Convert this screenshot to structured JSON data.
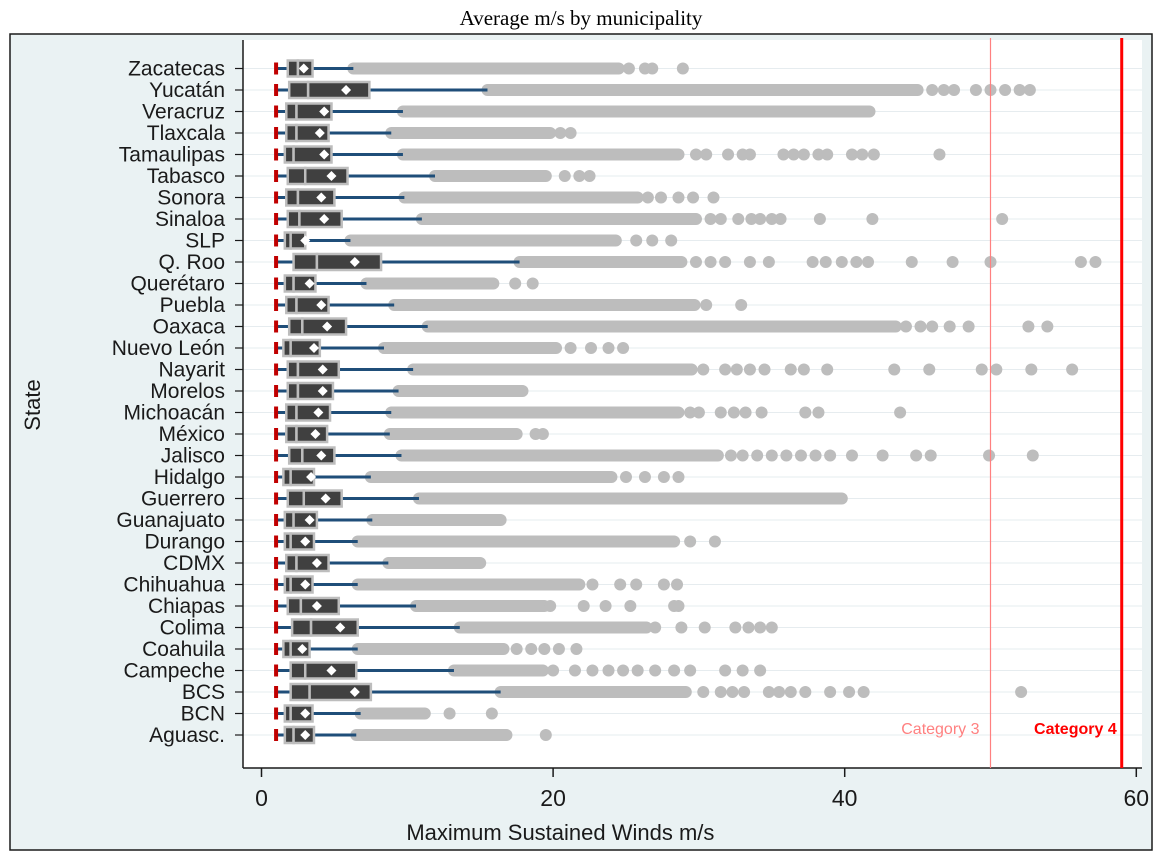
{
  "chart_data": {
    "type": "boxplot",
    "orientation": "horizontal",
    "title": "Average m/s by municipality",
    "xlabel": "Maximum Sustained Winds m/s",
    "ylabel": "State",
    "xlim": [
      -1,
      61
    ],
    "xticks": [
      0,
      20,
      40,
      60
    ],
    "grid": "horizontal",
    "legend": "none",
    "categories": [
      "Zacatecas",
      "Yucatán",
      "Veracruz",
      "Tlaxcala",
      "Tamaulipas",
      "Tabasco",
      "Sonora",
      "Sinaloa",
      "SLP",
      "Q. Roo",
      "Querétaro",
      "Puebla",
      "Oaxaca",
      "Nuevo León",
      "Nayarit",
      "Morelos",
      "Michoacán",
      "México",
      "Jalisco",
      "Hidalgo",
      "Guerrero",
      "Guanajuato",
      "Durango",
      "CDMX",
      "Chihuahua",
      "Chiapas",
      "Colima",
      "Coahuila",
      "Campeche",
      "BCS",
      "BCN",
      "Aguasc."
    ],
    "boxes": [
      {
        "min": 1.0,
        "q1": 1.8,
        "median": 2.5,
        "q3": 3.5,
        "mean": 2.9,
        "whisker_hi": 6.3,
        "outlier_range": [
          6.3,
          24.5
        ],
        "outliers": [
          25.2,
          26.3,
          26.8,
          28.9
        ]
      },
      {
        "min": 1.0,
        "q1": 1.9,
        "median": 3.2,
        "q3": 7.4,
        "mean": 5.8,
        "whisker_hi": 15.5,
        "outlier_range": [
          15.5,
          45.0
        ],
        "outliers": [
          46.0,
          46.8,
          47.5,
          49.0,
          50.0,
          51.0,
          52.0,
          52.7
        ]
      },
      {
        "min": 1.0,
        "q1": 1.7,
        "median": 2.4,
        "q3": 4.8,
        "mean": 4.3,
        "whisker_hi": 9.7,
        "outlier_range": [
          9.7,
          41.7
        ],
        "outliers": []
      },
      {
        "min": 1.0,
        "q1": 1.7,
        "median": 2.4,
        "q3": 4.6,
        "mean": 4.0,
        "whisker_hi": 8.9,
        "outlier_range": [
          8.9,
          19.8
        ],
        "outliers": [
          20.5,
          21.2
        ]
      },
      {
        "min": 1.0,
        "q1": 1.6,
        "median": 2.2,
        "q3": 4.8,
        "mean": 4.3,
        "whisker_hi": 9.7,
        "outlier_range": [
          9.7,
          28.6
        ],
        "outliers": [
          29.8,
          30.5,
          32.0,
          33.0,
          33.5,
          35.8,
          36.5,
          37.2,
          38.2,
          38.8,
          40.5,
          41.2,
          42.0,
          46.5
        ]
      },
      {
        "min": 1.0,
        "q1": 1.8,
        "median": 3.0,
        "q3": 5.9,
        "mean": 4.8,
        "whisker_hi": 11.9,
        "outlier_range": [
          11.9,
          19.5
        ],
        "outliers": [
          20.8,
          21.8,
          22.5
        ]
      },
      {
        "min": 1.0,
        "q1": 1.7,
        "median": 2.5,
        "q3": 5.0,
        "mean": 4.1,
        "whisker_hi": 9.8,
        "outlier_range": [
          9.8,
          25.8
        ],
        "outliers": [
          26.5,
          27.4,
          28.6,
          29.6,
          31.0
        ]
      },
      {
        "min": 1.0,
        "q1": 1.8,
        "median": 2.6,
        "q3": 5.5,
        "mean": 4.3,
        "whisker_hi": 11.0,
        "outlier_range": [
          11.0,
          29.8
        ],
        "outliers": [
          30.8,
          31.5,
          32.7,
          33.6,
          34.2,
          35.0,
          35.6,
          38.3,
          41.9,
          50.8
        ]
      },
      {
        "min": 1.0,
        "q1": 1.6,
        "median": 2.0,
        "q3": 3.0,
        "mean": 3.0,
        "whisker_hi": 6.1,
        "outlier_range": [
          6.1,
          24.3
        ],
        "outliers": [
          25.7,
          26.8,
          28.1
        ]
      },
      {
        "min": 1.0,
        "q1": 2.2,
        "median": 3.8,
        "q3": 8.2,
        "mean": 6.4,
        "whisker_hi": 17.7,
        "outlier_range": [
          17.7,
          28.8
        ],
        "outliers": [
          29.8,
          30.8,
          31.8,
          33.5,
          34.8,
          37.8,
          38.7,
          39.8,
          40.8,
          41.6,
          44.6,
          47.4,
          50.0,
          56.2,
          57.2
        ]
      },
      {
        "min": 1.0,
        "q1": 1.6,
        "median": 2.2,
        "q3": 3.7,
        "mean": 3.3,
        "whisker_hi": 7.2,
        "outlier_range": [
          7.2,
          15.9
        ],
        "outliers": [
          17.4,
          18.6
        ]
      },
      {
        "min": 1.0,
        "q1": 1.7,
        "median": 2.4,
        "q3": 4.6,
        "mean": 4.1,
        "whisker_hi": 9.1,
        "outlier_range": [
          9.1,
          29.7
        ],
        "outliers": [
          30.5,
          32.9
        ]
      },
      {
        "min": 1.0,
        "q1": 1.9,
        "median": 2.8,
        "q3": 5.8,
        "mean": 4.5,
        "whisker_hi": 11.4,
        "outlier_range": [
          11.4,
          43.5
        ],
        "outliers": [
          44.2,
          45.2,
          46.0,
          47.2,
          48.5,
          52.6,
          53.9
        ]
      },
      {
        "min": 1.0,
        "q1": 1.5,
        "median": 2.0,
        "q3": 4.0,
        "mean": 3.6,
        "whisker_hi": 8.4,
        "outlier_range": [
          8.4,
          20.2
        ],
        "outliers": [
          21.2,
          22.6,
          23.8,
          24.8
        ]
      },
      {
        "min": 1.0,
        "q1": 1.8,
        "median": 2.5,
        "q3": 5.3,
        "mean": 4.2,
        "whisker_hi": 10.4,
        "outlier_range": [
          10.4,
          29.5
        ],
        "outliers": [
          30.3,
          31.8,
          32.6,
          33.5,
          34.5,
          36.3,
          37.2,
          38.8,
          43.4,
          45.8,
          49.4,
          50.4,
          52.8,
          55.6
        ]
      },
      {
        "min": 1.0,
        "q1": 1.8,
        "median": 2.5,
        "q3": 4.9,
        "mean": 4.2,
        "whisker_hi": 9.4,
        "outlier_range": [
          9.4,
          17.9
        ],
        "outliers": []
      },
      {
        "min": 1.0,
        "q1": 1.7,
        "median": 2.4,
        "q3": 4.7,
        "mean": 3.9,
        "whisker_hi": 8.9,
        "outlier_range": [
          8.9,
          28.6
        ],
        "outliers": [
          29.4,
          30.0,
          31.5,
          32.4,
          33.2,
          34.3,
          37.3,
          38.2,
          43.8
        ]
      },
      {
        "min": 1.0,
        "q1": 1.7,
        "median": 2.4,
        "q3": 4.5,
        "mean": 3.7,
        "whisker_hi": 8.8,
        "outlier_range": [
          8.8,
          17.5
        ],
        "outliers": [
          18.8,
          19.3
        ]
      },
      {
        "min": 1.0,
        "q1": 1.9,
        "median": 2.8,
        "q3": 5.0,
        "mean": 4.1,
        "whisker_hi": 9.6,
        "outlier_range": [
          9.6,
          31.3
        ],
        "outliers": [
          32.2,
          33.0,
          34.0,
          35.0,
          36.0,
          37.0,
          38.0,
          39.0,
          40.5,
          42.6,
          44.9,
          45.9,
          49.9,
          52.9
        ]
      },
      {
        "min": 1.0,
        "q1": 1.5,
        "median": 2.0,
        "q3": 3.6,
        "mean": 3.4,
        "whisker_hi": 7.5,
        "outlier_range": [
          7.5,
          24.0
        ],
        "outliers": [
          25.0,
          26.3,
          27.6,
          28.6
        ]
      },
      {
        "min": 1.0,
        "q1": 1.8,
        "median": 2.9,
        "q3": 5.5,
        "mean": 4.4,
        "whisker_hi": 10.8,
        "outlier_range": [
          10.8,
          39.8
        ],
        "outliers": []
      },
      {
        "min": 1.0,
        "q1": 1.6,
        "median": 2.2,
        "q3": 3.8,
        "mean": 3.3,
        "whisker_hi": 7.6,
        "outlier_range": [
          7.6,
          16.4
        ],
        "outliers": []
      },
      {
        "min": 1.0,
        "q1": 1.6,
        "median": 2.0,
        "q3": 3.6,
        "mean": 3.0,
        "whisker_hi": 6.6,
        "outlier_range": [
          6.6,
          28.3
        ],
        "outliers": [
          29.4,
          31.1
        ]
      },
      {
        "min": 1.0,
        "q1": 1.7,
        "median": 2.4,
        "q3": 4.6,
        "mean": 3.8,
        "whisker_hi": 8.7,
        "outlier_range": [
          8.7,
          15.0
        ],
        "outliers": []
      },
      {
        "min": 1.0,
        "q1": 1.6,
        "median": 2.0,
        "q3": 3.5,
        "mean": 3.0,
        "whisker_hi": 6.6,
        "outlier_range": [
          6.6,
          21.8
        ],
        "outliers": [
          22.7,
          24.6,
          25.7,
          27.6,
          28.5
        ]
      },
      {
        "min": 1.0,
        "q1": 1.8,
        "median": 2.7,
        "q3": 5.3,
        "mean": 3.8,
        "whisker_hi": 10.6,
        "outlier_range": [
          10.6,
          19.4
        ],
        "outliers": [
          19.8,
          22.1,
          23.6,
          25.3,
          28.3,
          28.6
        ]
      },
      {
        "min": 1.0,
        "q1": 2.1,
        "median": 3.4,
        "q3": 6.6,
        "mean": 5.4,
        "whisker_hi": 13.6,
        "outlier_range": [
          13.6,
          26.4
        ],
        "outliers": [
          27.0,
          28.8,
          30.4,
          32.5,
          33.4,
          34.2,
          35.0
        ]
      },
      {
        "min": 1.0,
        "q1": 1.5,
        "median": 2.0,
        "q3": 3.3,
        "mean": 2.8,
        "whisker_hi": 6.6,
        "outlier_range": [
          6.6,
          16.6
        ],
        "outliers": [
          17.5,
          18.5,
          19.4,
          20.4,
          21.6
        ]
      },
      {
        "min": 1.0,
        "q1": 2.0,
        "median": 3.0,
        "q3": 6.5,
        "mean": 4.8,
        "whisker_hi": 13.2,
        "outlier_range": [
          13.2,
          19.3
        ],
        "outliers": [
          20.0,
          21.5,
          22.7,
          23.8,
          24.8,
          25.8,
          27.0,
          28.3,
          29.4,
          31.8,
          33.0,
          34.2
        ]
      },
      {
        "min": 1.0,
        "q1": 2.0,
        "median": 3.3,
        "q3": 7.5,
        "mean": 6.4,
        "whisker_hi": 16.4,
        "outlier_range": [
          16.4,
          29.1
        ],
        "outliers": [
          30.3,
          31.5,
          32.3,
          33.1,
          34.8,
          35.5,
          36.3,
          37.3,
          39.0,
          40.3,
          41.3,
          52.1
        ]
      },
      {
        "min": 1.0,
        "q1": 1.6,
        "median": 2.0,
        "q3": 3.5,
        "mean": 3.0,
        "whisker_hi": 6.8,
        "outlier_range": [
          6.8,
          11.2
        ],
        "outliers": [
          12.9,
          15.8
        ]
      },
      {
        "min": 1.0,
        "q1": 1.6,
        "median": 2.2,
        "q3": 3.6,
        "mean": 3.0,
        "whisker_hi": 6.5,
        "outlier_range": [
          6.5,
          16.8
        ],
        "outliers": [
          19.5
        ]
      }
    ],
    "reference_lines": [
      {
        "label": "Category 3",
        "x": 50,
        "color": "#ff8080"
      },
      {
        "label": "Category 4",
        "x": 59,
        "color": "#ff0000"
      }
    ],
    "colors": {
      "box": "#404040",
      "box_outline": "#bdbdbd",
      "whisker": "#1f4e79",
      "outlier": "#bdbdbd",
      "mean_marker": "#ffffff",
      "min_marker": "#c00000",
      "grid": "#e6ecef",
      "cat3": "#ff8080",
      "cat4": "#ff0000"
    }
  }
}
